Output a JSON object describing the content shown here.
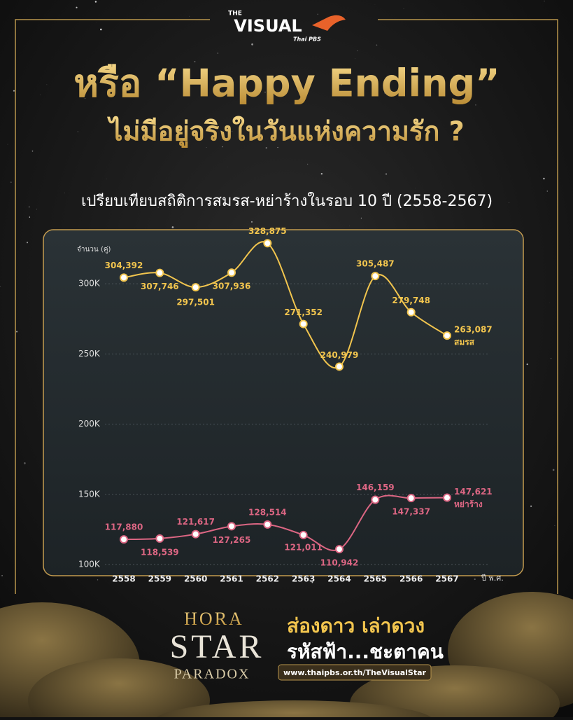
{
  "logo": {
    "the": "THE",
    "name": "VISUAL",
    "brand": "Thai PBS"
  },
  "header": {
    "title_line1": "หรือ “Happy Ending”",
    "title_line2": "ไม่มีอยู่จริงในวันแห่งความรัก ?"
  },
  "chart_data": {
    "type": "line",
    "title": "เปรียบเทียบสถิติการสมรส-หย่าร้างในรอบ 10 ปี (2558-2567)",
    "y_label": "จำนวน (คู่)",
    "x_label": "ปี พ.ศ.",
    "categories": [
      "2558",
      "2559",
      "2560",
      "2561",
      "2562",
      "2563",
      "2564",
      "2565",
      "2566",
      "2567"
    ],
    "series": [
      {
        "name": "สมรส",
        "color": "#f2c54e",
        "values": [
          304392,
          307746,
          297501,
          307936,
          328875,
          271352,
          240979,
          305487,
          279748,
          263087
        ],
        "value_labels": [
          "304,392",
          "307,746",
          "297,501",
          "307,936",
          "328,875",
          "271,352",
          "240,979",
          "305,487",
          "279,748",
          "263,087"
        ]
      },
      {
        "name": "หย่าร้าง",
        "color": "#dc6683",
        "values": [
          117880,
          118539,
          121617,
          127265,
          128514,
          121011,
          110942,
          146159,
          147337,
          147621
        ],
        "value_labels": [
          "117,880",
          "118,539",
          "121,617",
          "127,265",
          "128,514",
          "121,011",
          "110,942",
          "146,159",
          "147,337",
          "147,621"
        ]
      }
    ],
    "ylim": [
      100000,
      335000
    ],
    "yticks": [
      {
        "value": 100000,
        "label": "100K"
      },
      {
        "value": 150000,
        "label": "150K"
      },
      {
        "value": 200000,
        "label": "200K"
      },
      {
        "value": 250000,
        "label": "250K"
      },
      {
        "value": 300000,
        "label": "300K"
      }
    ],
    "grid": true
  },
  "footer": {
    "brand_top": "HORA",
    "brand_mid": "STAR",
    "brand_bottom": "PARADOX",
    "tagline1": "ส่องดาว เล่าดวง",
    "tagline2": "รหัสฟ้า...ชะตาคน",
    "url": "www.thaipbs.or.th/TheVisualStar"
  }
}
